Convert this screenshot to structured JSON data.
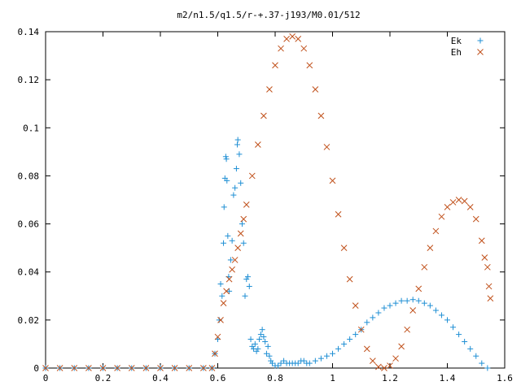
{
  "chart_data": {
    "type": "scatter",
    "title": "m2/n1.5/q1.5/r-+.37-j193/M0.01/512",
    "xlabel": "",
    "ylabel": "",
    "xlim": [
      0,
      1.6
    ],
    "ylim": [
      0,
      0.14
    ],
    "x_ticks": [
      "0",
      "0.2",
      "0.4",
      "0.6",
      "0.8",
      "1",
      "1.2",
      "1.4",
      "1.6"
    ],
    "y_ticks": [
      "0",
      "0.02",
      "0.04",
      "0.06",
      "0.08",
      "0.1",
      "0.12",
      "0.14"
    ],
    "grid": false,
    "legend": "top-right",
    "colors": {
      "Ek": "#1f8fd4",
      "Eh": "#c0501a"
    },
    "series": [
      {
        "name": "Ek",
        "marker": "+",
        "points": [
          [
            0.0,
            0
          ],
          [
            0.05,
            0
          ],
          [
            0.1,
            0
          ],
          [
            0.15,
            0
          ],
          [
            0.2,
            0
          ],
          [
            0.25,
            0
          ],
          [
            0.3,
            0
          ],
          [
            0.35,
            0
          ],
          [
            0.4,
            0
          ],
          [
            0.45,
            0
          ],
          [
            0.5,
            0
          ],
          [
            0.55,
            0
          ],
          [
            0.58,
            0
          ],
          [
            0.59,
            0.006
          ],
          [
            0.6,
            0.012
          ],
          [
            0.605,
            0.02
          ],
          [
            0.61,
            0.035
          ],
          [
            0.615,
            0.03
          ],
          [
            0.62,
            0.052
          ],
          [
            0.622,
            0.067
          ],
          [
            0.625,
            0.079
          ],
          [
            0.628,
            0.088
          ],
          [
            0.63,
            0.087
          ],
          [
            0.632,
            0.078
          ],
          [
            0.635,
            0.055
          ],
          [
            0.638,
            0.038
          ],
          [
            0.64,
            0.032
          ],
          [
            0.645,
            0.045
          ],
          [
            0.65,
            0.053
          ],
          [
            0.655,
            0.072
          ],
          [
            0.66,
            0.075
          ],
          [
            0.665,
            0.083
          ],
          [
            0.668,
            0.093
          ],
          [
            0.67,
            0.095
          ],
          [
            0.675,
            0.089
          ],
          [
            0.68,
            0.077
          ],
          [
            0.685,
            0.06
          ],
          [
            0.69,
            0.052
          ],
          [
            0.695,
            0.03
          ],
          [
            0.7,
            0.037
          ],
          [
            0.705,
            0.038
          ],
          [
            0.71,
            0.034
          ],
          [
            0.715,
            0.012
          ],
          [
            0.72,
            0.009
          ],
          [
            0.725,
            0.008
          ],
          [
            0.73,
            0.01
          ],
          [
            0.735,
            0.007
          ],
          [
            0.74,
            0.008
          ],
          [
            0.745,
            0.012
          ],
          [
            0.75,
            0.014
          ],
          [
            0.755,
            0.016
          ],
          [
            0.76,
            0.013
          ],
          [
            0.765,
            0.011
          ],
          [
            0.77,
            0.006
          ],
          [
            0.775,
            0.009
          ],
          [
            0.78,
            0.005
          ],
          [
            0.785,
            0.003
          ],
          [
            0.79,
            0.002
          ],
          [
            0.8,
            0.001
          ],
          [
            0.81,
            0.001
          ],
          [
            0.82,
            0.002
          ],
          [
            0.83,
            0.003
          ],
          [
            0.84,
            0.002
          ],
          [
            0.85,
            0.002
          ],
          [
            0.86,
            0.002
          ],
          [
            0.87,
            0.002
          ],
          [
            0.88,
            0.002
          ],
          [
            0.89,
            0.003
          ],
          [
            0.9,
            0.003
          ],
          [
            0.91,
            0.002
          ],
          [
            0.92,
            0.002
          ],
          [
            0.94,
            0.003
          ],
          [
            0.96,
            0.004
          ],
          [
            0.98,
            0.005
          ],
          [
            1.0,
            0.006
          ],
          [
            1.02,
            0.008
          ],
          [
            1.04,
            0.01
          ],
          [
            1.06,
            0.012
          ],
          [
            1.08,
            0.014
          ],
          [
            1.1,
            0.016
          ],
          [
            1.12,
            0.019
          ],
          [
            1.14,
            0.021
          ],
          [
            1.16,
            0.023
          ],
          [
            1.18,
            0.025
          ],
          [
            1.2,
            0.026
          ],
          [
            1.22,
            0.027
          ],
          [
            1.24,
            0.028
          ],
          [
            1.26,
            0.028
          ],
          [
            1.28,
            0.0285
          ],
          [
            1.3,
            0.028
          ],
          [
            1.32,
            0.027
          ],
          [
            1.34,
            0.026
          ],
          [
            1.36,
            0.024
          ],
          [
            1.38,
            0.022
          ],
          [
            1.4,
            0.02
          ],
          [
            1.42,
            0.017
          ],
          [
            1.44,
            0.014
          ],
          [
            1.46,
            0.011
          ],
          [
            1.48,
            0.008
          ],
          [
            1.5,
            0.005
          ],
          [
            1.52,
            0.002
          ],
          [
            1.54,
            0.0
          ]
        ]
      },
      {
        "name": "Eh",
        "marker": "x",
        "points": [
          [
            0.0,
            0
          ],
          [
            0.05,
            0
          ],
          [
            0.1,
            0
          ],
          [
            0.15,
            0
          ],
          [
            0.2,
            0
          ],
          [
            0.25,
            0
          ],
          [
            0.3,
            0
          ],
          [
            0.35,
            0
          ],
          [
            0.4,
            0
          ],
          [
            0.45,
            0
          ],
          [
            0.5,
            0
          ],
          [
            0.55,
            0
          ],
          [
            0.58,
            0
          ],
          [
            0.59,
            0.006
          ],
          [
            0.6,
            0.013
          ],
          [
            0.61,
            0.02
          ],
          [
            0.62,
            0.027
          ],
          [
            0.63,
            0.032
          ],
          [
            0.64,
            0.037
          ],
          [
            0.65,
            0.041
          ],
          [
            0.66,
            0.045
          ],
          [
            0.67,
            0.05
          ],
          [
            0.68,
            0.056
          ],
          [
            0.69,
            0.062
          ],
          [
            0.7,
            0.068
          ],
          [
            0.72,
            0.08
          ],
          [
            0.74,
            0.093
          ],
          [
            0.76,
            0.105
          ],
          [
            0.78,
            0.116
          ],
          [
            0.8,
            0.126
          ],
          [
            0.82,
            0.133
          ],
          [
            0.84,
            0.137
          ],
          [
            0.86,
            0.138
          ],
          [
            0.88,
            0.137
          ],
          [
            0.9,
            0.133
          ],
          [
            0.92,
            0.126
          ],
          [
            0.94,
            0.116
          ],
          [
            0.96,
            0.105
          ],
          [
            0.98,
            0.092
          ],
          [
            1.0,
            0.078
          ],
          [
            1.02,
            0.064
          ],
          [
            1.04,
            0.05
          ],
          [
            1.06,
            0.037
          ],
          [
            1.08,
            0.026
          ],
          [
            1.1,
            0.016
          ],
          [
            1.12,
            0.008
          ],
          [
            1.14,
            0.003
          ],
          [
            1.16,
            0.0005
          ],
          [
            1.18,
            0.0
          ],
          [
            1.2,
            0.001
          ],
          [
            1.22,
            0.004
          ],
          [
            1.24,
            0.009
          ],
          [
            1.26,
            0.016
          ],
          [
            1.28,
            0.024
          ],
          [
            1.3,
            0.033
          ],
          [
            1.32,
            0.042
          ],
          [
            1.34,
            0.05
          ],
          [
            1.36,
            0.057
          ],
          [
            1.38,
            0.063
          ],
          [
            1.4,
            0.067
          ],
          [
            1.42,
            0.069
          ],
          [
            1.44,
            0.07
          ],
          [
            1.46,
            0.0695
          ],
          [
            1.48,
            0.067
          ],
          [
            1.5,
            0.062
          ],
          [
            1.52,
            0.053
          ],
          [
            1.53,
            0.046
          ],
          [
            1.54,
            0.042
          ],
          [
            1.545,
            0.034
          ],
          [
            1.55,
            0.029
          ]
        ]
      }
    ]
  }
}
